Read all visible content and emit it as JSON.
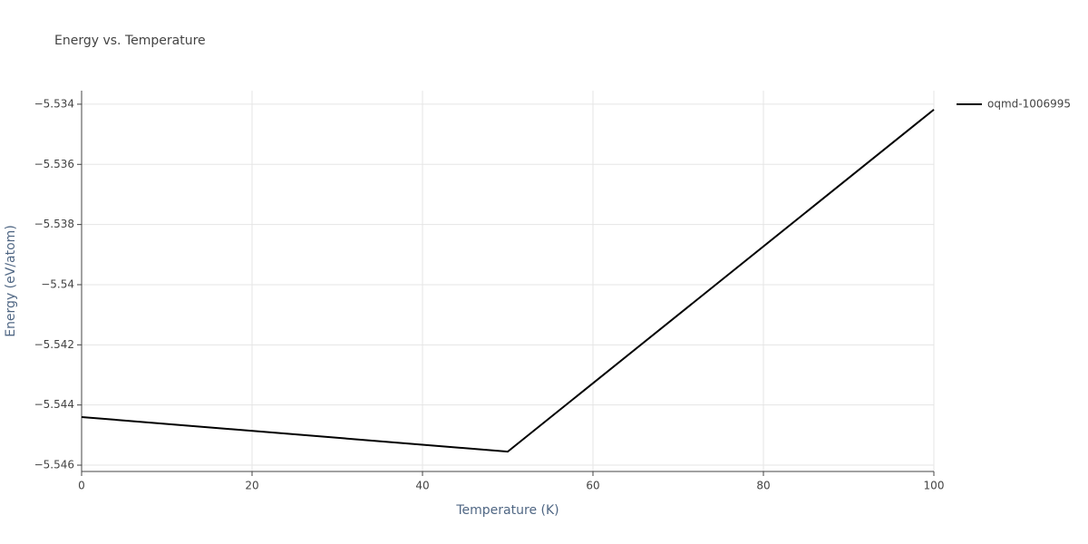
{
  "chart_data": {
    "type": "line",
    "title": "Energy vs. Temperature",
    "x_label": "Temperature (K)",
    "y_label": "Energy (eV/atom)",
    "x": [
      0,
      50,
      100
    ],
    "series": [
      {
        "name": "oqmd-1006995",
        "color": "#000000",
        "values": [
          -5.5444,
          -5.54555,
          -5.53418
        ]
      }
    ],
    "xlim": [
      0,
      100
    ],
    "xticks": [
      0,
      20,
      40,
      60,
      80,
      100
    ],
    "ylim": [
      -5.54621,
      -5.53355
    ],
    "yticks": [
      {
        "value": -5.546,
        "label": "−5.546"
      },
      {
        "value": -5.544,
        "label": "−5.544"
      },
      {
        "value": -5.542,
        "label": "−5.542"
      },
      {
        "value": -5.54,
        "label": "−5.54"
      },
      {
        "value": -5.538,
        "label": "−5.538"
      },
      {
        "value": -5.536,
        "label": "−5.536"
      },
      {
        "value": -5.534,
        "label": "−5.534"
      }
    ],
    "grid": true,
    "legend": "right"
  }
}
